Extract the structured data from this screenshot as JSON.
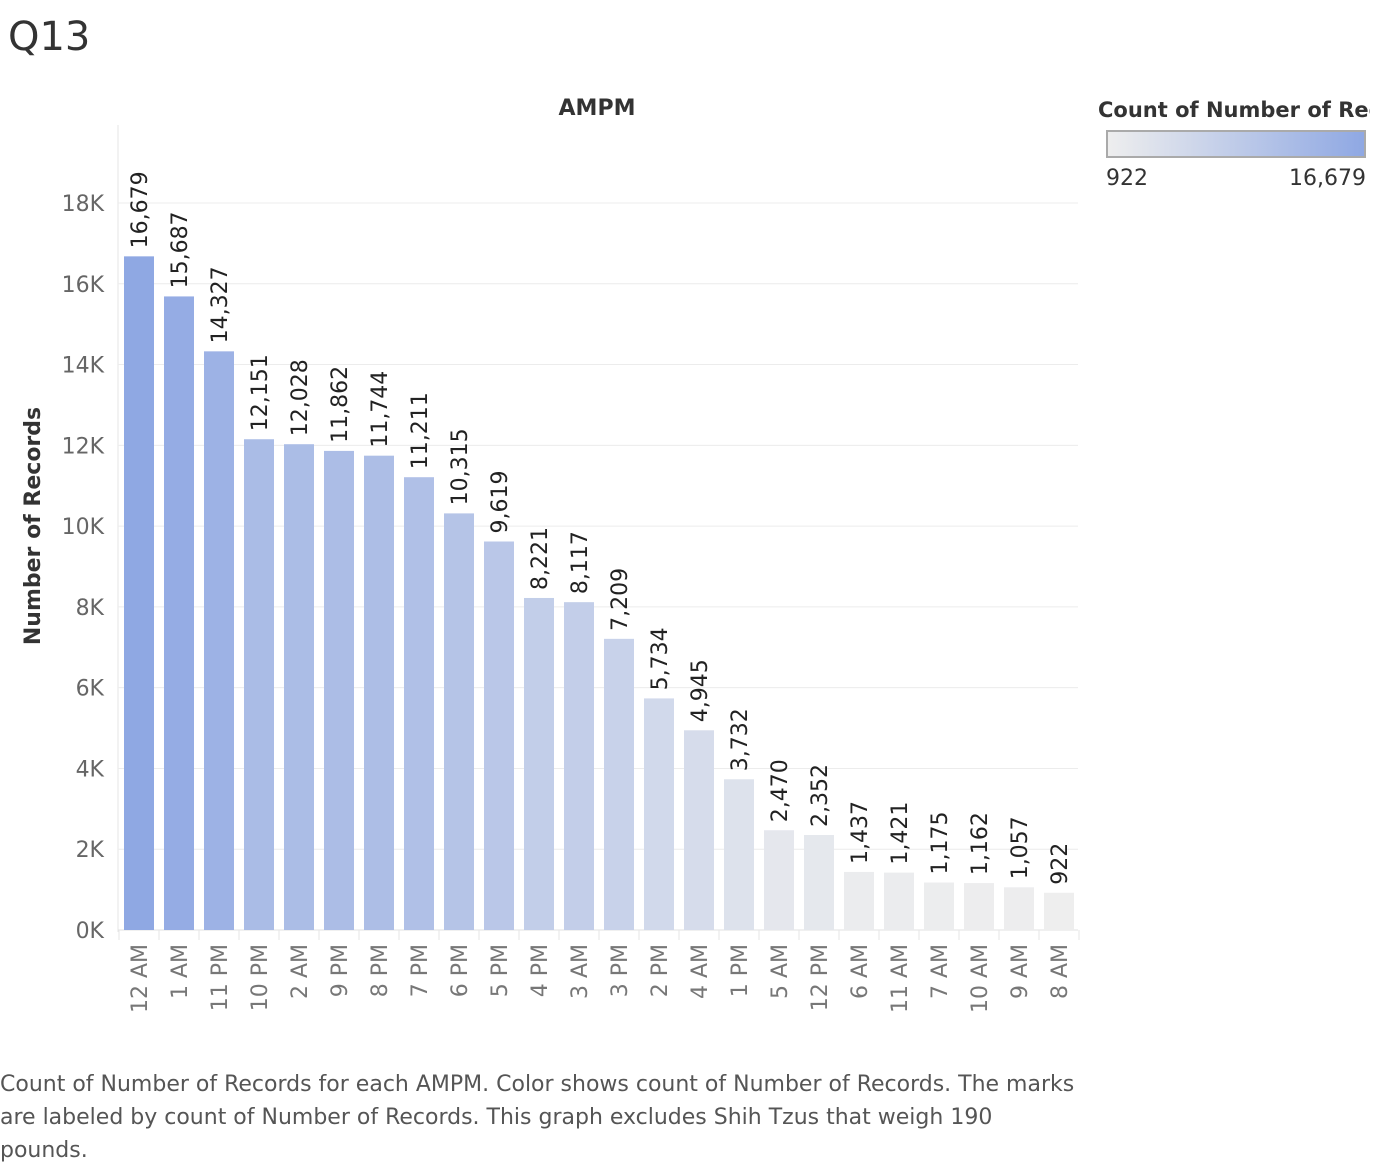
{
  "page": {
    "title": "Q13",
    "caption": "Count of Number of Records for each AMPM.  Color shows count of Number of Records.  The marks are labeled by count of Number of Records. This graph excludes Shih Tzus that weigh 190 pounds."
  },
  "legend": {
    "title": "Count of Number of Rec..",
    "min_label": "922",
    "max_label": "16,679",
    "color_low": "#eeeeee",
    "color_high": "#8fa8e3"
  },
  "chart_data": {
    "type": "bar",
    "title": "AMPM",
    "xlabel": "",
    "ylabel": "Number of Records",
    "ylim": [
      0,
      18000
    ],
    "yticks": [
      0,
      2000,
      4000,
      6000,
      8000,
      10000,
      12000,
      14000,
      16000,
      18000
    ],
    "ytick_labels": [
      "0K",
      "2K",
      "4K",
      "6K",
      "8K",
      "10K",
      "12K",
      "14K",
      "16K",
      "18K"
    ],
    "grid": true,
    "categories": [
      "12 AM",
      "1 AM",
      "11 PM",
      "10 PM",
      "2 AM",
      "9 PM",
      "8 PM",
      "7 PM",
      "6 PM",
      "5 PM",
      "4 PM",
      "3 AM",
      "3 PM",
      "2 PM",
      "4 AM",
      "1 PM",
      "5 AM",
      "12 PM",
      "6 AM",
      "11 AM",
      "7 AM",
      "10 AM",
      "9 AM",
      "8 AM"
    ],
    "values": [
      16679,
      15687,
      14327,
      12151,
      12028,
      11862,
      11744,
      11211,
      10315,
      9619,
      8221,
      8117,
      7209,
      5734,
      4945,
      3732,
      2470,
      2352,
      1437,
      1421,
      1175,
      1162,
      1057,
      922
    ],
    "data_labels": [
      "16,679",
      "15,687",
      "14,327",
      "12,151",
      "12,028",
      "11,862",
      "11,744",
      "11,211",
      "10,315",
      "9,619",
      "8,221",
      "8,117",
      "7,209",
      "5,734",
      "4,945",
      "3,732",
      "2,470",
      "2,352",
      "1,437",
      "1,421",
      "1,175",
      "1,162",
      "1,057",
      "922"
    ],
    "color_min": 922,
    "color_max": 16679,
    "legend_position": "top-right"
  }
}
